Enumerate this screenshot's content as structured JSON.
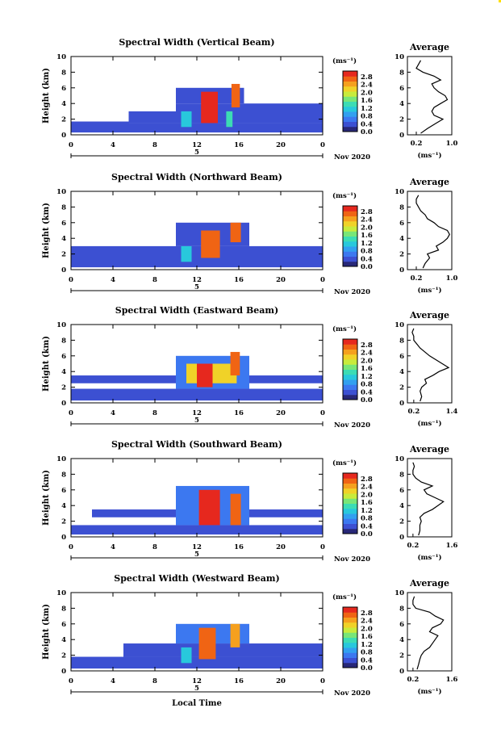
{
  "figure": {
    "panel_title_prefix": "Spectral Width",
    "xlabel": "Local Time",
    "x_ticks": [
      "0",
      "4",
      "8",
      "12",
      "16",
      "20",
      "0"
    ],
    "y_ticks": [
      "0",
      "2",
      "4",
      "6",
      "8",
      "10"
    ],
    "ylabel": "Height (km)",
    "date_day": "5",
    "date_label": "Nov 2020",
    "colorbar_unit": "(ms⁻¹)",
    "colorbar_ticks": [
      "0.0",
      "0.4",
      "0.8",
      "1.2",
      "1.6",
      "2.0",
      "2.4",
      "2.8"
    ],
    "avg_title": "Average",
    "avg_xlabel": "(ms⁻¹)"
  },
  "colors": {
    "scale": [
      "#282878",
      "#3c50d2",
      "#3c78f0",
      "#32a0f0",
      "#28c8dc",
      "#3cdcb4",
      "#78e678",
      "#c8eb3c",
      "#f0d228",
      "#f5a01e",
      "#f06414",
      "#e6281e"
    ]
  },
  "chart_data": [
    {
      "type": "heatmap",
      "title": "Spectral Width (Vertical Beam)",
      "xlabel": "",
      "ylabel": "Height (km)",
      "xlim": [
        0,
        24
      ],
      "ylim": [
        0,
        10
      ],
      "colorbar_range": [
        0.0,
        3.0
      ],
      "cells": [
        {
          "x0": 0,
          "x1": 5.5,
          "y0": 0.3,
          "y1": 1.7,
          "v": 0.3
        },
        {
          "x0": 5.5,
          "x1": 24,
          "y0": 0.3,
          "y1": 1.5,
          "v": 0.35
        },
        {
          "x0": 5.5,
          "x1": 10,
          "y0": 1.5,
          "y1": 3.0,
          "v": 0.4
        },
        {
          "x0": 10,
          "x1": 24,
          "y0": 1.5,
          "y1": 4.0,
          "v": 0.4
        },
        {
          "x0": 10,
          "x1": 16.5,
          "y0": 4.0,
          "y1": 6.0,
          "v": 0.45
        },
        {
          "x0": 10.5,
          "x1": 11.5,
          "y0": 1.0,
          "y1": 3.0,
          "v": 1.2
        },
        {
          "x0": 12.4,
          "x1": 14.0,
          "y0": 1.5,
          "y1": 5.5,
          "v": 2.8
        },
        {
          "x0": 15.3,
          "x1": 16.1,
          "y0": 3.5,
          "y1": 6.5,
          "v": 2.7
        },
        {
          "x0": 14.8,
          "x1": 15.4,
          "y0": 1.0,
          "y1": 3.0,
          "v": 1.3
        }
      ],
      "average": {
        "title": "Average",
        "xlabel": "(ms⁻¹)",
        "xlim": [
          0.0,
          1.0
        ],
        "xticks": [
          "0.2",
          "1.0"
        ],
        "x_at_ticks": [
          0.2,
          1.0
        ],
        "heights": [
          0.2,
          0.8,
          1.5,
          2.0,
          2.5,
          3.0,
          3.5,
          4.0,
          4.5,
          5.0,
          5.5,
          6.0,
          6.5,
          7.0,
          7.5,
          8.0,
          8.5,
          9.0,
          9.5
        ],
        "values": [
          0.3,
          0.45,
          0.65,
          0.8,
          0.6,
          0.55,
          0.6,
          0.75,
          0.9,
          0.85,
          0.7,
          0.6,
          0.55,
          0.75,
          0.6,
          0.35,
          0.2,
          0.25,
          0.3
        ]
      }
    },
    {
      "type": "heatmap",
      "title": "Spectral Width (Northward Beam)",
      "xlabel": "",
      "ylabel": "Height (km)",
      "xlim": [
        0,
        24
      ],
      "ylim": [
        0,
        10
      ],
      "colorbar_range": [
        0.0,
        3.0
      ],
      "cells": [
        {
          "x0": 0,
          "x1": 24,
          "y0": 0.3,
          "y1": 3.0,
          "v": 0.4
        },
        {
          "x0": 10,
          "x1": 17,
          "y0": 3.0,
          "y1": 6.0,
          "v": 0.45
        },
        {
          "x0": 12.4,
          "x1": 14.2,
          "y0": 1.5,
          "y1": 5.0,
          "v": 2.7
        },
        {
          "x0": 15.2,
          "x1": 16.2,
          "y0": 3.5,
          "y1": 6.0,
          "v": 2.5
        },
        {
          "x0": 10.5,
          "x1": 11.5,
          "y0": 1.0,
          "y1": 3.0,
          "v": 1.1
        }
      ],
      "average": {
        "title": "Average",
        "xlabel": "(ms⁻¹)",
        "xlim": [
          0.0,
          1.0
        ],
        "xticks": [
          "0.2",
          "1.0"
        ],
        "x_at_ticks": [
          0.2,
          1.0
        ],
        "heights": [
          0.2,
          0.8,
          1.5,
          2.0,
          2.5,
          3.0,
          3.5,
          4.0,
          4.5,
          5.0,
          5.5,
          6.0,
          6.5,
          7.0,
          7.5,
          8.0,
          8.5,
          9.0,
          9.5
        ],
        "values": [
          0.35,
          0.4,
          0.5,
          0.45,
          0.7,
          0.65,
          0.8,
          0.9,
          0.95,
          0.9,
          0.7,
          0.6,
          0.45,
          0.4,
          0.3,
          0.25,
          0.2,
          0.2,
          0.25
        ]
      }
    },
    {
      "type": "heatmap",
      "title": "Spectral Width (Eastward Beam)",
      "xlabel": "",
      "ylabel": "Height (km)",
      "xlim": [
        0,
        24
      ],
      "ylim": [
        0,
        10
      ],
      "colorbar_range": [
        0.0,
        3.0
      ],
      "cells": [
        {
          "x0": 0,
          "x1": 24,
          "y0": 0.3,
          "y1": 1.8,
          "v": 0.35
        },
        {
          "x0": 0,
          "x1": 24,
          "y0": 2.5,
          "y1": 3.5,
          "v": 0.35
        },
        {
          "x0": 10,
          "x1": 17,
          "y0": 1.8,
          "y1": 6.0,
          "v": 0.5
        },
        {
          "x0": 11.0,
          "x1": 15.8,
          "y0": 2.5,
          "y1": 5.0,
          "v": 2.2
        },
        {
          "x0": 12.0,
          "x1": 13.5,
          "y0": 2.0,
          "y1": 5.0,
          "v": 2.9
        },
        {
          "x0": 15.2,
          "x1": 16.1,
          "y0": 3.5,
          "y1": 6.5,
          "v": 2.6
        }
      ],
      "average": {
        "title": "Average",
        "xlabel": "(ms⁻¹)",
        "xlim": [
          0.0,
          1.4
        ],
        "xticks": [
          "0.2",
          "1.4"
        ],
        "x_at_ticks": [
          0.2,
          1.4
        ],
        "heights": [
          0.2,
          0.8,
          1.5,
          2.0,
          2.5,
          3.0,
          3.5,
          4.0,
          4.5,
          5.0,
          5.5,
          6.0,
          6.5,
          7.0,
          7.5,
          8.0,
          8.5,
          9.0,
          9.5
        ],
        "values": [
          0.4,
          0.45,
          0.4,
          0.45,
          0.6,
          0.55,
          0.8,
          1.0,
          1.3,
          1.1,
          0.9,
          0.7,
          0.55,
          0.4,
          0.3,
          0.2,
          0.2,
          0.15,
          0.2
        ]
      }
    },
    {
      "type": "heatmap",
      "title": "Spectral Width (Southward Beam)",
      "xlabel": "",
      "ylabel": "Height (km)",
      "xlim": [
        0,
        24
      ],
      "ylim": [
        0,
        10
      ],
      "colorbar_range": [
        0.0,
        3.0
      ],
      "cells": [
        {
          "x0": 0,
          "x1": 24,
          "y0": 0.3,
          "y1": 1.5,
          "v": 0.35
        },
        {
          "x0": 2,
          "x1": 24,
          "y0": 2.5,
          "y1": 3.5,
          "v": 0.35
        },
        {
          "x0": 10,
          "x1": 17,
          "y0": 1.5,
          "y1": 6.5,
          "v": 0.5
        },
        {
          "x0": 12.2,
          "x1": 14.2,
          "y0": 1.5,
          "y1": 6.0,
          "v": 2.8
        },
        {
          "x0": 15.2,
          "x1": 16.2,
          "y0": 1.5,
          "y1": 5.5,
          "v": 2.5
        }
      ],
      "average": {
        "title": "Average",
        "xlabel": "(ms⁻¹)",
        "xlim": [
          0.0,
          1.6
        ],
        "xticks": [
          "0.2",
          "1.6"
        ],
        "x_at_ticks": [
          0.2,
          1.6
        ],
        "heights": [
          0.2,
          0.8,
          1.5,
          2.0,
          2.5,
          3.0,
          3.5,
          4.0,
          4.5,
          5.0,
          5.5,
          6.0,
          6.5,
          7.0,
          7.5,
          8.0,
          8.5,
          9.0,
          9.5
        ],
        "values": [
          0.4,
          0.45,
          0.45,
          0.5,
          0.45,
          0.6,
          0.9,
          1.1,
          1.3,
          1.0,
          0.7,
          0.6,
          0.9,
          0.5,
          0.3,
          0.2,
          0.2,
          0.25,
          0.2
        ]
      }
    },
    {
      "type": "heatmap",
      "title": "Spectral Width (Westward Beam)",
      "xlabel": "Local Time",
      "ylabel": "Height (km)",
      "xlim": [
        0,
        24
      ],
      "ylim": [
        0,
        10
      ],
      "colorbar_range": [
        0.0,
        3.0
      ],
      "cells": [
        {
          "x0": 0,
          "x1": 24,
          "y0": 0.3,
          "y1": 1.8,
          "v": 0.3
        },
        {
          "x0": 5,
          "x1": 24,
          "y0": 1.8,
          "y1": 3.5,
          "v": 0.4
        },
        {
          "x0": 10,
          "x1": 17,
          "y0": 3.5,
          "y1": 6.0,
          "v": 0.5
        },
        {
          "x0": 12.2,
          "x1": 13.8,
          "y0": 1.5,
          "y1": 5.5,
          "v": 2.6
        },
        {
          "x0": 15.2,
          "x1": 16.1,
          "y0": 3.0,
          "y1": 6.0,
          "v": 2.4
        },
        {
          "x0": 10.5,
          "x1": 11.5,
          "y0": 1.0,
          "y1": 3.0,
          "v": 1.0
        }
      ],
      "average": {
        "title": "Average",
        "xlabel": "(ms⁻¹)",
        "xlim": [
          0.0,
          1.6
        ],
        "xticks": [
          "0.2",
          "1.6"
        ],
        "x_at_ticks": [
          0.2,
          1.6
        ],
        "heights": [
          0.2,
          0.8,
          1.5,
          2.0,
          2.5,
          3.0,
          3.5,
          4.0,
          4.5,
          5.0,
          5.5,
          6.0,
          6.5,
          7.0,
          7.5,
          8.0,
          8.5,
          9.0,
          9.5
        ],
        "values": [
          0.35,
          0.4,
          0.45,
          0.5,
          0.6,
          0.8,
          0.9,
          1.0,
          1.1,
          0.8,
          0.9,
          1.2,
          1.3,
          1.0,
          0.8,
          0.3,
          0.2,
          0.2,
          0.25
        ]
      }
    }
  ]
}
